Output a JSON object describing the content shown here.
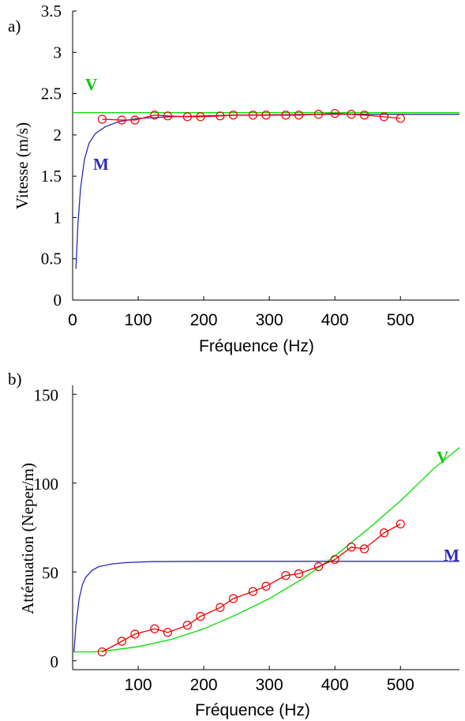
{
  "chart_data": [
    {
      "panel": "a)",
      "type": "line",
      "xlabel": "Fréquence   (Hz)",
      "ylabel": "Vitesse (m/s)",
      "xlim": [
        0,
        590
      ],
      "ylim": [
        0,
        3.5
      ],
      "xticks": [
        "0",
        "100",
        "200",
        "300",
        "400",
        "500"
      ],
      "yticks": [
        "0",
        "0.5",
        "1",
        "1.5",
        "2",
        "2.5",
        "3",
        "3.5"
      ],
      "series": [
        {
          "name": "V",
          "color": "#00dd00",
          "marker": "none",
          "x": [
            0,
            100,
            200,
            300,
            400,
            500,
            590
          ],
          "y": [
            2.27,
            2.27,
            2.27,
            2.27,
            2.27,
            2.27,
            2.27
          ]
        },
        {
          "name": "M",
          "color": "#2a2ab8",
          "marker": "none",
          "x": [
            5,
            8,
            12,
            18,
            25,
            35,
            50,
            70,
            100,
            150,
            250,
            400,
            590
          ],
          "y": [
            0.38,
            0.9,
            1.35,
            1.7,
            1.9,
            2.02,
            2.1,
            2.16,
            2.2,
            2.22,
            2.24,
            2.25,
            2.25
          ]
        },
        {
          "name": "",
          "color": "#ee0000",
          "marker": "circle",
          "x": [
            45,
            75,
            95,
            125,
            145,
            175,
            195,
            225,
            245,
            275,
            295,
            325,
            345,
            375,
            400,
            425,
            445,
            475,
            500
          ],
          "y": [
            2.19,
            2.18,
            2.18,
            2.24,
            2.23,
            2.22,
            2.22,
            2.23,
            2.24,
            2.24,
            2.24,
            2.24,
            2.24,
            2.25,
            2.26,
            2.25,
            2.24,
            2.22,
            2.2
          ]
        }
      ]
    },
    {
      "panel": "b)",
      "type": "line",
      "xlabel": "Fréquence   (Hz)",
      "ylabel": "Atténuation   (Neper/m)",
      "xlim": [
        0,
        590
      ],
      "ylim": [
        -5,
        155
      ],
      "xticks": [
        "100",
        "200",
        "300",
        "400",
        "500"
      ],
      "yticks": [
        "0",
        "50",
        "100",
        "150"
      ],
      "series": [
        {
          "name": "V",
          "color": "#00dd00",
          "marker": "none",
          "x": [
            0,
            30,
            60,
            100,
            150,
            200,
            250,
            300,
            350,
            400,
            450,
            500,
            550,
            590
          ],
          "y": [
            5,
            5,
            6,
            8,
            12,
            18,
            26,
            35,
            46,
            59,
            74,
            90,
            108,
            120
          ]
        },
        {
          "name": "M",
          "color": "#2a2ab8",
          "marker": "none",
          "x": [
            2,
            5,
            10,
            15,
            20,
            30,
            40,
            60,
            80,
            120,
            200,
            300,
            590
          ],
          "y": [
            5,
            20,
            35,
            43,
            47,
            51,
            53,
            54.5,
            55.2,
            55.8,
            56,
            56,
            56
          ]
        },
        {
          "name": "",
          "color": "#ee0000",
          "marker": "circle",
          "x": [
            45,
            75,
            95,
            125,
            145,
            175,
            195,
            225,
            245,
            275,
            295,
            325,
            345,
            375,
            400,
            425,
            445,
            475,
            500
          ],
          "y": [
            5,
            11,
            15,
            18,
            16,
            20,
            25,
            30,
            35,
            39,
            42,
            48,
            49,
            53,
            57,
            64,
            63,
            72,
            77
          ]
        }
      ],
      "annotations": [
        "V",
        "M"
      ]
    }
  ],
  "panels": {
    "a": {
      "label": "a)",
      "series_labels": {
        "v": "V",
        "m": "M"
      }
    },
    "b": {
      "label": "b)",
      "series_labels": {
        "v": "V",
        "m": "M"
      }
    }
  }
}
